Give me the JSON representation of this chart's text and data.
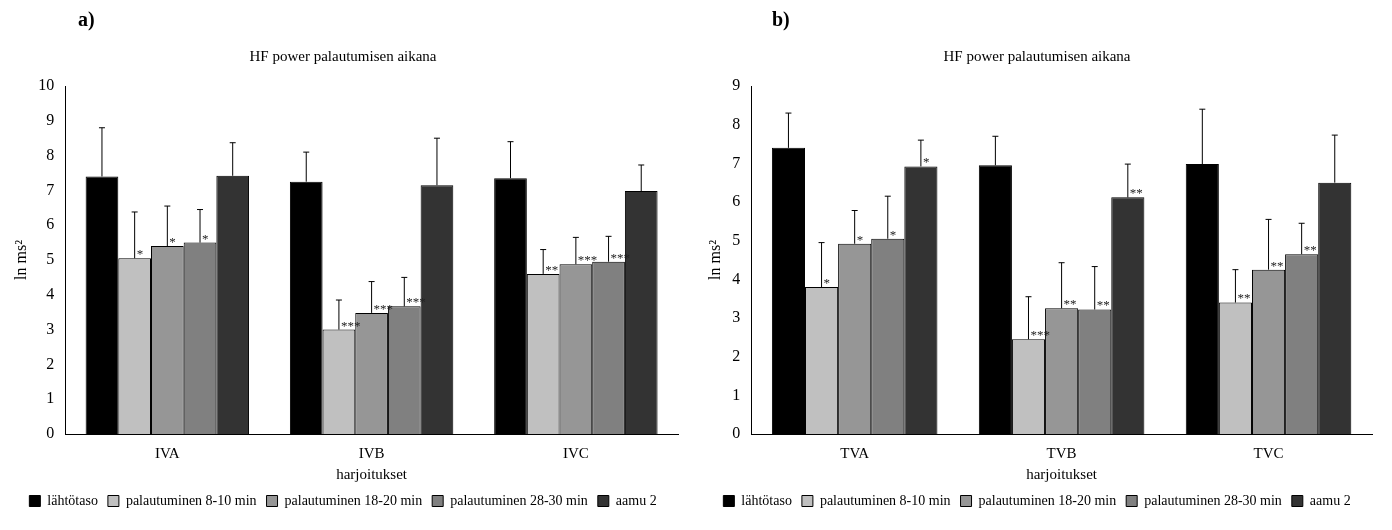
{
  "chart_data": [
    {
      "type": "bar",
      "annotations": [
        "a)"
      ],
      "title": "HF power palautumisen aikana",
      "xlabel": "harjoitukset",
      "ylabel": "ln ms²",
      "categories": [
        "IVA",
        "IVB",
        "IVC"
      ],
      "ylim": [
        0,
        10
      ],
      "yticks": [
        0,
        1,
        2,
        3,
        4,
        5,
        6,
        7,
        8,
        9,
        10
      ],
      "grid": false,
      "legend": "bottom",
      "series": [
        {
          "name": "lähtötaso",
          "color": "#000000",
          "values": [
            7.4,
            7.25,
            7.35
          ],
          "errors": [
            [
              7.4,
              8.8
            ],
            [
              7.25,
              8.1
            ],
            [
              7.35,
              8.4
            ]
          ]
        },
        {
          "name": "palautuminen 8-10 min",
          "color": "#c0c0c0",
          "values": [
            5.05,
            3.0,
            4.6
          ],
          "errors": [
            [
              5.05,
              6.38
            ],
            [
              3.0,
              3.85
            ],
            [
              4.6,
              5.3
            ]
          ],
          "value_labels": [
            "*",
            "***",
            "**"
          ]
        },
        {
          "name": "palautuminen 18-20 min",
          "color": "#969696",
          "values": [
            5.4,
            3.48,
            4.88
          ],
          "errors": [
            [
              5.4,
              6.55
            ],
            [
              3.48,
              4.38
            ],
            [
              4.88,
              5.65
            ]
          ],
          "value_labels": [
            "*",
            "***",
            "***"
          ]
        },
        {
          "name": "palautuminen 28-30 min",
          "color": "#808080",
          "values": [
            5.5,
            3.67,
            4.95
          ],
          "errors": [
            [
              5.5,
              6.45
            ],
            [
              3.67,
              4.5
            ],
            [
              4.95,
              5.68
            ]
          ],
          "value_labels": [
            "*",
            "***",
            "***"
          ]
        },
        {
          "name": "aamu 2",
          "color": "#333333",
          "values": [
            7.42,
            7.15,
            6.98
          ],
          "errors": [
            [
              7.42,
              8.37
            ],
            [
              7.15,
              8.5
            ],
            [
              6.98,
              7.73
            ]
          ]
        }
      ]
    },
    {
      "type": "bar",
      "annotations": [
        "b)"
      ],
      "title": "HF power palautumisen aikana",
      "xlabel": "harjoitukset",
      "ylabel": "ln ms²",
      "categories": [
        "TVA",
        "TVB",
        "TVC"
      ],
      "ylim": [
        0,
        9
      ],
      "yticks": [
        0,
        1,
        2,
        3,
        4,
        5,
        6,
        7,
        8,
        9
      ],
      "grid": false,
      "legend": "bottom",
      "series": [
        {
          "name": "lähtötaso",
          "color": "#000000",
          "values": [
            7.4,
            6.95,
            6.98
          ],
          "errors": [
            [
              7.4,
              8.3
            ],
            [
              6.95,
              7.7
            ],
            [
              6.98,
              8.4
            ]
          ]
        },
        {
          "name": "palautuminen 8-10 min",
          "color": "#c0c0c0",
          "values": [
            3.8,
            2.45,
            3.4
          ],
          "errors": [
            [
              3.8,
              4.95
            ],
            [
              2.45,
              3.55
            ],
            [
              3.4,
              4.25
            ]
          ],
          "value_labels": [
            "*",
            "***",
            "**"
          ]
        },
        {
          "name": "palautuminen 18-20 min",
          "color": "#969696",
          "values": [
            4.92,
            3.25,
            4.25
          ],
          "errors": [
            [
              4.92,
              5.78
            ],
            [
              3.25,
              4.43
            ],
            [
              4.25,
              5.55
            ]
          ],
          "value_labels": [
            "*",
            "**",
            "**"
          ]
        },
        {
          "name": "palautuminen 28-30 min",
          "color": "#808080",
          "values": [
            5.05,
            3.22,
            4.65
          ],
          "errors": [
            [
              5.05,
              6.15
            ],
            [
              3.22,
              4.33
            ],
            [
              4.65,
              5.45
            ]
          ],
          "value_labels": [
            "*",
            "**",
            "**"
          ]
        },
        {
          "name": "aamu 2",
          "color": "#333333",
          "values": [
            6.92,
            6.12,
            6.5
          ],
          "errors": [
            [
              6.92,
              7.6
            ],
            [
              6.12,
              6.98
            ],
            [
              6.5,
              7.73
            ]
          ],
          "value_labels": [
            "*",
            "**",
            null
          ]
        }
      ]
    }
  ]
}
